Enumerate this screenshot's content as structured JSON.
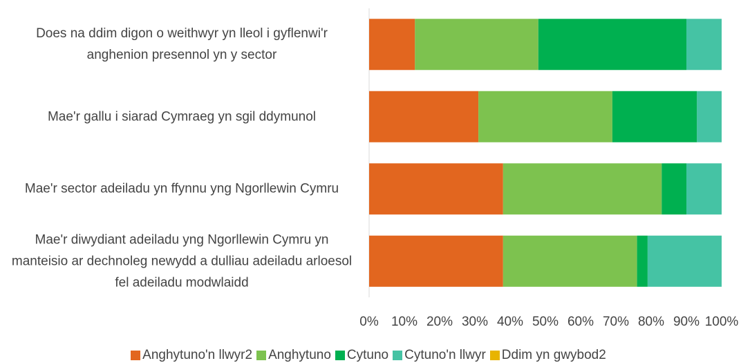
{
  "chart_data": {
    "type": "stacked-barh",
    "categories": [
      "Does na ddim digon o weithwyr yn lleol i gyflenwi'r anghenion presennol yn y sector",
      "Mae'r gallu i siarad Cymraeg yn sgil ddymunol",
      "Mae'r sector adeiladu yn ffynnu yng Ngorllewin Cymru",
      "Mae'r diwydiant adeiladu yng Ngorllewin Cymru yn manteisio ar dechnoleg newydd a dulliau adeiladu arloesol fel adeiladu modwlaidd"
    ],
    "series": [
      {
        "name": "Anghytuno'n llwyr2",
        "color": "#e2661f",
        "values": [
          13,
          31,
          38,
          38
        ]
      },
      {
        "name": "Anghytuno",
        "color": "#7dc24f",
        "values": [
          35,
          38,
          45,
          38
        ]
      },
      {
        "name": "Cytuno",
        "color": "#00b050",
        "values": [
          42,
          24,
          7,
          3
        ]
      },
      {
        "name": "Cytuno'n llwyr",
        "color": "#45c3a4",
        "values": [
          10,
          7,
          10,
          21
        ]
      },
      {
        "name": "Ddim yn gwybod2",
        "color": "#e8b400",
        "values": [
          0,
          0,
          0,
          0
        ]
      }
    ],
    "xlim": [
      0,
      100
    ],
    "xticks": [
      {
        "value": 0,
        "label": "0%"
      },
      {
        "value": 10,
        "label": "10%"
      },
      {
        "value": 20,
        "label": "20%"
      },
      {
        "value": 30,
        "label": "30%"
      },
      {
        "value": 40,
        "label": "40%"
      },
      {
        "value": 50,
        "label": "50%"
      },
      {
        "value": 60,
        "label": "60%"
      },
      {
        "value": 70,
        "label": "70%"
      },
      {
        "value": 80,
        "label": "80%"
      },
      {
        "value": 90,
        "label": "90%"
      },
      {
        "value": 100,
        "label": "100%"
      }
    ],
    "legend": "bottom"
  }
}
